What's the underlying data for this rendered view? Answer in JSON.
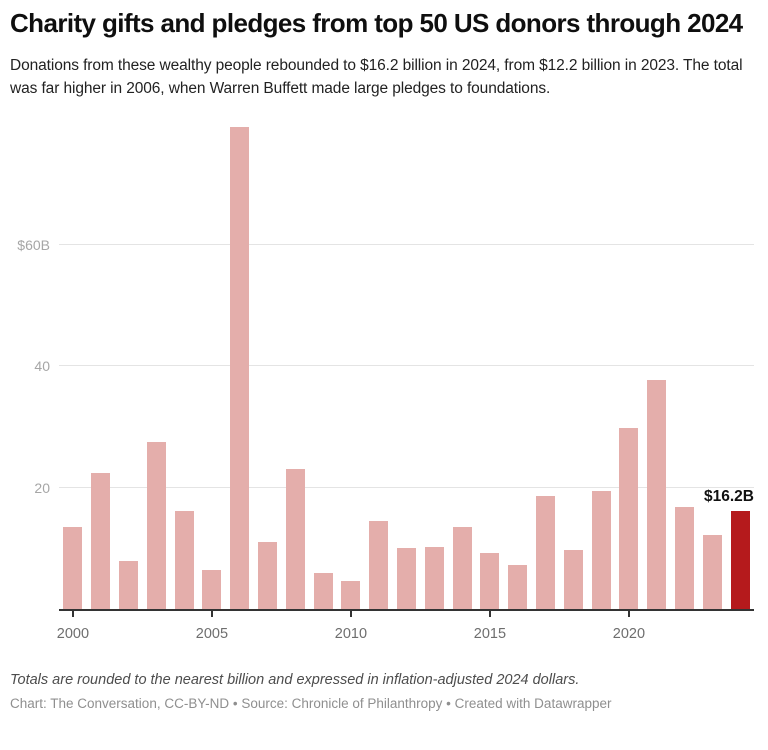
{
  "header": {
    "title": "Charity gifts and pledges from top 50 US donors through 2024",
    "subtitle": "Donations from these wealthy people rebounded to $16.2 billion in 2024, from $12.2 billion in 2023. The total was far higher in 2006, when Warren Buffett made large pledges to foundations."
  },
  "chart_data": {
    "type": "bar",
    "title": "Charity gifts and pledges from top 50 US donors through 2024",
    "unit": "billions of inflation-adjusted 2024 US dollars",
    "categories": [
      "2000",
      "2001",
      "2002",
      "2003",
      "2004",
      "2005",
      "2006",
      "2007",
      "2008",
      "2009",
      "2010",
      "2011",
      "2012",
      "2013",
      "2014",
      "2015",
      "2016",
      "2017",
      "2018",
      "2019",
      "2020",
      "2021",
      "2022",
      "2023",
      "2024"
    ],
    "values": [
      13.6,
      22.4,
      7.9,
      27.5,
      16.1,
      6.4,
      79.4,
      11.0,
      23.1,
      5.9,
      4.6,
      14.5,
      10.1,
      10.2,
      13.6,
      9.2,
      7.2,
      18.7,
      9.8,
      19.4,
      29.9,
      37.8,
      16.8,
      12.2,
      16.2
    ],
    "xlabel": "",
    "ylabel": "$ billions",
    "ylim": [
      0,
      80.3
    ],
    "grid": "horizontal",
    "legend": "none",
    "gridlines": [
      {
        "value": 20,
        "label": "20"
      },
      {
        "value": 40,
        "label": "40"
      },
      {
        "value": 60,
        "label": "$60B"
      }
    ],
    "x_ticks": [
      "2000",
      "2005",
      "2010",
      "2015",
      "2020"
    ],
    "bar_color": "#e4aeab",
    "highlight_color": "#b51a1c",
    "highlight_category": "2024",
    "annotation": {
      "text": "$16.2B",
      "category": "2024",
      "value": 16.2
    },
    "axis_color": "#333333",
    "gridline_color": "#e4e4e4"
  },
  "footer": {
    "note": "Totals are rounded to the nearest billion and expressed in inflation-adjusted 2024 dollars.",
    "credit": "Chart: The Conversation, CC-BY-ND • Source: Chronicle of Philanthropy • Created with Datawrapper"
  }
}
